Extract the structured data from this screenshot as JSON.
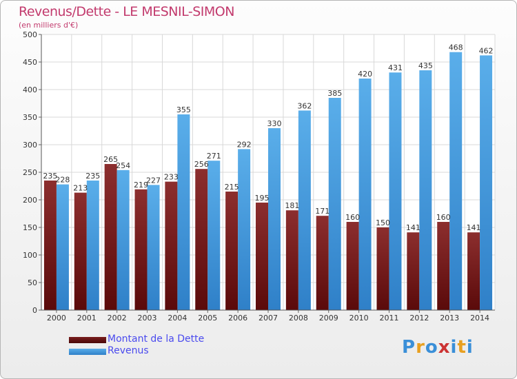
{
  "chart_data": {
    "type": "bar",
    "title": "Revenus/Dette - LE MESNIL-SIMON",
    "subtitle": "(en milliers d'€)",
    "categories": [
      "2000",
      "2001",
      "2002",
      "2003",
      "2004",
      "2005",
      "2006",
      "2007",
      "2008",
      "2009",
      "2010",
      "2011",
      "2012",
      "2013",
      "2014"
    ],
    "series": [
      {
        "name": "Montant de la Dette",
        "color": "#7a1d1d",
        "values": [
          235,
          213,
          265,
          219,
          233,
          256,
          215,
          195,
          181,
          171,
          160,
          150,
          141,
          160,
          141
        ]
      },
      {
        "name": "Revenus",
        "color": "#4a9fe0",
        "values": [
          228,
          235,
          254,
          227,
          355,
          271,
          292,
          330,
          362,
          385,
          420,
          431,
          435,
          468,
          462
        ]
      }
    ],
    "ylim": [
      0,
      500
    ],
    "yticks": [
      0,
      50,
      100,
      150,
      200,
      250,
      300,
      350,
      400,
      450,
      500
    ],
    "grid": true,
    "xlabel": "",
    "ylabel": ""
  },
  "logo": {
    "text": "Proxiti",
    "letters": [
      "P",
      "r",
      "o",
      "x",
      "i",
      "t",
      "i"
    ],
    "colors": [
      "#3a8fd8",
      "#e8a020",
      "#3a8fd8",
      "#cc3333",
      "#3a8fd8",
      "#e8a020",
      "#3a8fd8"
    ]
  }
}
